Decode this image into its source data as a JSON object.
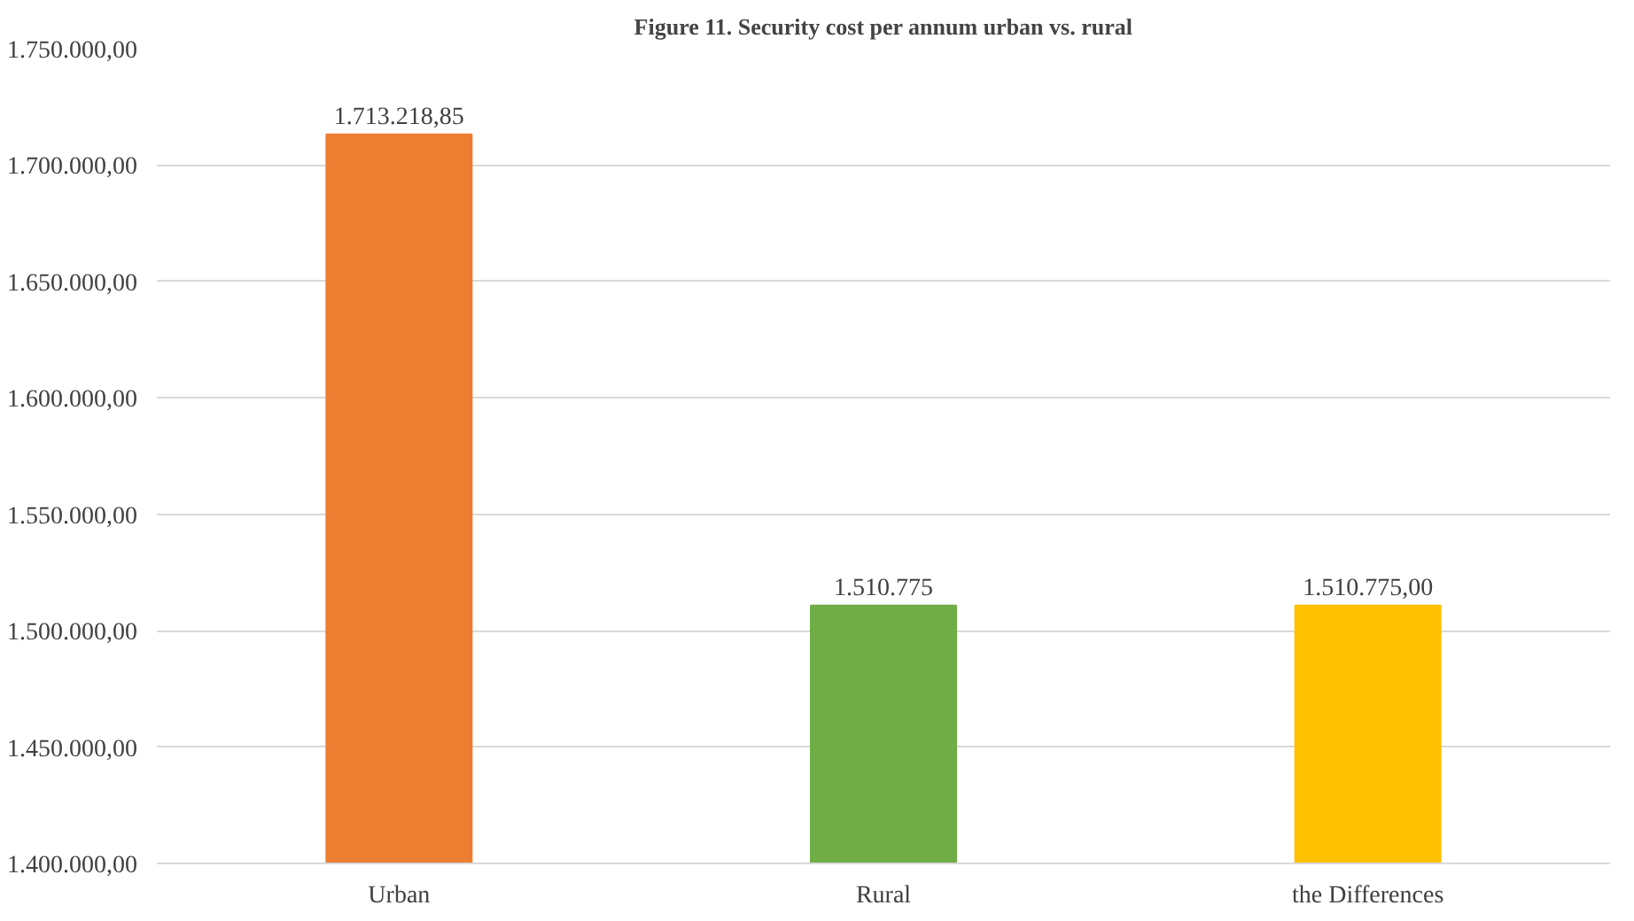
{
  "chart_data": {
    "type": "bar",
    "title": "Figure 11. Security cost per annum urban vs. rural",
    "categories": [
      "Urban",
      "Rural",
      "the Differences"
    ],
    "values": [
      1713218.85,
      1510775,
      1510775.0
    ],
    "colors": [
      "#ed7d31",
      "#70ad47",
      "#ffc000"
    ],
    "value_labels": [
      "1.713.218,85",
      "1.510.775",
      "1.510.775,00"
    ],
    "ylim": [
      1400000,
      1750000
    ],
    "yticks": [
      {
        "value": 1400000,
        "label": "1.400.000,00"
      },
      {
        "value": 1450000,
        "label": "1.450.000,00"
      },
      {
        "value": 1500000,
        "label": "1.500.000,00"
      },
      {
        "value": 1550000,
        "label": "1.550.000,00"
      },
      {
        "value": 1600000,
        "label": "1.600.000,00"
      },
      {
        "value": 1650000,
        "label": "1.650.000,00"
      },
      {
        "value": 1700000,
        "label": "1.700.000,00"
      },
      {
        "value": 1750000,
        "label": "1.750.000,00"
      }
    ],
    "grid": "y"
  }
}
